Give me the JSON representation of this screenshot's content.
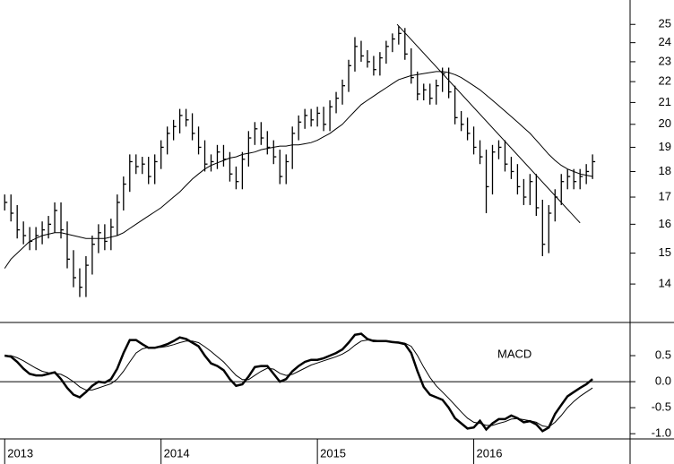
{
  "chart_data": {
    "type": "hlc",
    "log_scale": true,
    "xlim": [
      2012.97,
      2017.0
    ],
    "xticks": [
      2013,
      2014,
      2015,
      2016
    ],
    "ylim": [
      12.9,
      26.4
    ],
    "yticks": [
      14,
      15,
      16,
      17,
      18,
      19,
      20,
      21,
      22,
      23,
      24,
      25
    ],
    "color": "#000000",
    "x": [
      2013,
      2013.04,
      2013.08,
      2013.12,
      2013.16,
      2013.2,
      2013.24,
      2013.28,
      2013.32,
      2013.36,
      2013.4,
      2013.44,
      2013.48,
      2013.52,
      2013.56,
      2013.6,
      2013.64,
      2013.68,
      2013.72,
      2013.76,
      2013.8,
      2013.84,
      2013.88,
      2013.92,
      2013.96,
      2014,
      2014.04,
      2014.08,
      2014.12,
      2014.16,
      2014.2,
      2014.24,
      2014.28,
      2014.32,
      2014.36,
      2014.4,
      2014.44,
      2014.48,
      2014.52,
      2014.56,
      2014.6,
      2014.64,
      2014.68,
      2014.72,
      2014.76,
      2014.8,
      2014.84,
      2014.88,
      2014.92,
      2014.96,
      2015,
      2015.04,
      2015.08,
      2015.12,
      2015.16,
      2015.2,
      2015.24,
      2015.28,
      2015.32,
      2015.36,
      2015.4,
      2015.44,
      2015.48,
      2015.52,
      2015.56,
      2015.6,
      2015.64,
      2015.68,
      2015.72,
      2015.76,
      2015.8,
      2015.84,
      2015.88,
      2015.92,
      2015.96,
      2016,
      2016.04,
      2016.08,
      2016.12,
      2016.16,
      2016.2,
      2016.24,
      2016.28,
      2016.32,
      2016.36,
      2016.4,
      2016.44,
      2016.48,
      2016.52,
      2016.56,
      2016.6,
      2016.64,
      2016.68,
      2016.72,
      2016.76
    ],
    "high": [
      17.1,
      17.1,
      16.7,
      16.1,
      15.9,
      15.9,
      16.1,
      16.3,
      16.8,
      16.8,
      16.1,
      15.1,
      14.5,
      14.9,
      15.6,
      16.0,
      16.0,
      16.2,
      17.1,
      17.8,
      18.7,
      18.7,
      18.6,
      18.6,
      18.7,
      19.3,
      19.9,
      20.2,
      20.7,
      20.7,
      20.5,
      19.9,
      19.3,
      18.7,
      19.1,
      19.1,
      18.8,
      18.2,
      18.8,
      19.7,
      20.1,
      20.1,
      19.7,
      19.3,
      18.9,
      18.7,
      19.9,
      20.4,
      20.7,
      20.7,
      20.8,
      20.8,
      21.1,
      21.5,
      22.1,
      23.1,
      24.3,
      24.1,
      23.6,
      23.3,
      23.5,
      24.1,
      24.5,
      24.9,
      24.8,
      23.7,
      22.5,
      21.9,
      21.9,
      22.1,
      22.7,
      22.7,
      21.8,
      20.6,
      20.3,
      19.9,
      19.3,
      18.9,
      19.1,
      19.3,
      19.3,
      18.6,
      18.3,
      17.7,
      17.9,
      17.9,
      16.9,
      16.7,
      17.3,
      17.9,
      18.1,
      18.1,
      18.1,
      18.3,
      18.7
    ],
    "low": [
      16.5,
      16.1,
      15.5,
      15.3,
      15.1,
      15.1,
      15.3,
      15.5,
      15.7,
      15.5,
      14.5,
      13.9,
      13.6,
      13.6,
      14.3,
      15.0,
      15.1,
      15.1,
      15.6,
      16.5,
      17.2,
      17.9,
      17.9,
      17.5,
      17.5,
      18.1,
      18.7,
      19.3,
      19.6,
      19.9,
      19.3,
      18.7,
      18.0,
      18.0,
      18.1,
      18.2,
      17.6,
      17.3,
      17.3,
      18.2,
      19.1,
      19.1,
      18.7,
      18.3,
      17.5,
      17.5,
      18.1,
      19.3,
      19.8,
      19.9,
      19.9,
      19.7,
      19.7,
      20.5,
      20.9,
      21.5,
      22.5,
      23.0,
      22.7,
      22.3,
      22.3,
      22.9,
      23.5,
      23.9,
      23.1,
      21.9,
      21.1,
      21.1,
      20.9,
      20.9,
      21.5,
      21.2,
      20.0,
      19.7,
      19.3,
      18.7,
      18.3,
      16.4,
      17.1,
      18.5,
      18.0,
      17.7,
      17.1,
      16.7,
      16.7,
      16.3,
      14.9,
      15.0,
      16.1,
      16.7,
      17.3,
      17.3,
      17.3,
      17.5,
      17.7
    ],
    "close": [
      16.8,
      16.4,
      15.8,
      15.6,
      15.4,
      15.6,
      15.8,
      16.0,
      16.5,
      15.8,
      14.8,
      14.2,
      13.9,
      14.6,
      15.3,
      15.7,
      15.4,
      15.9,
      16.8,
      17.5,
      18.4,
      18.2,
      18.3,
      17.8,
      18.4,
      19.0,
      19.6,
      19.9,
      20.4,
      20.2,
      19.6,
      19.0,
      18.3,
      18.4,
      18.8,
      18.5,
      17.9,
      17.6,
      18.5,
      19.4,
      19.8,
      19.4,
      19.0,
      18.6,
      17.8,
      18.4,
      19.6,
      20.1,
      20.4,
      20.2,
      20.5,
      20.0,
      20.8,
      21.2,
      21.8,
      22.8,
      23.8,
      23.3,
      23.0,
      22.6,
      23.2,
      23.8,
      24.2,
      24.5,
      23.4,
      22.2,
      21.4,
      21.6,
      21.2,
      21.8,
      22.4,
      21.5,
      20.3,
      20.0,
      19.6,
      19.0,
      18.6,
      17.4,
      18.8,
      19.0,
      18.3,
      18.0,
      17.4,
      17.0,
      17.6,
      16.6,
      15.3,
      16.4,
      17.0,
      17.6,
      17.8,
      17.6,
      17.8,
      18.0,
      18.4
    ],
    "moving_average": [
      14.5,
      14.8,
      15.0,
      15.2,
      15.4,
      15.5,
      15.6,
      15.65,
      15.7,
      15.7,
      15.65,
      15.6,
      15.55,
      15.5,
      15.5,
      15.5,
      15.5,
      15.55,
      15.6,
      15.7,
      15.85,
      16.0,
      16.15,
      16.3,
      16.45,
      16.6,
      16.8,
      17.0,
      17.2,
      17.45,
      17.7,
      17.9,
      18.1,
      18.25,
      18.35,
      18.45,
      18.55,
      18.6,
      18.7,
      18.75,
      18.8,
      18.9,
      18.95,
      19.0,
      19.05,
      19.05,
      19.1,
      19.1,
      19.15,
      19.2,
      19.3,
      19.45,
      19.6,
      19.8,
      20.0,
      20.3,
      20.6,
      20.9,
      21.1,
      21.3,
      21.5,
      21.7,
      21.9,
      22.1,
      22.2,
      22.3,
      22.35,
      22.4,
      22.45,
      22.5,
      22.5,
      22.45,
      22.35,
      22.2,
      22.0,
      21.8,
      21.6,
      21.35,
      21.1,
      20.85,
      20.6,
      20.35,
      20.1,
      19.85,
      19.6,
      19.3,
      19.0,
      18.7,
      18.45,
      18.25,
      18.1,
      18.0,
      17.9,
      17.85,
      17.8
    ],
    "trendline": {
      "x": [
        2015.51,
        2016.68
      ],
      "values": [
        25.0,
        16.05
      ]
    },
    "macd": {
      "label": "MACD",
      "ylim": [
        -1.1,
        1.12
      ],
      "yticks": [
        0.5,
        {
          "value": 0,
          "label": "0.0"
        },
        -0.5,
        {
          "value": -1,
          "label": "-1.0"
        }
      ],
      "zero_line": true,
      "line": [
        0.5,
        0.48,
        0.38,
        0.25,
        0.15,
        0.12,
        0.12,
        0.15,
        0.18,
        0.05,
        -0.12,
        -0.25,
        -0.3,
        -0.2,
        -0.08,
        0.0,
        -0.02,
        0.05,
        0.25,
        0.55,
        0.8,
        0.8,
        0.72,
        0.65,
        0.65,
        0.68,
        0.72,
        0.78,
        0.85,
        0.82,
        0.75,
        0.68,
        0.5,
        0.35,
        0.3,
        0.22,
        0.05,
        -0.08,
        -0.05,
        0.1,
        0.28,
        0.3,
        0.3,
        0.15,
        0.0,
        0.05,
        0.2,
        0.3,
        0.38,
        0.42,
        0.42,
        0.45,
        0.5,
        0.55,
        0.62,
        0.75,
        0.9,
        0.92,
        0.82,
        0.78,
        0.78,
        0.78,
        0.76,
        0.75,
        0.72,
        0.55,
        0.2,
        -0.1,
        -0.25,
        -0.3,
        -0.35,
        -0.5,
        -0.7,
        -0.8,
        -0.9,
        -0.88,
        -0.75,
        -0.92,
        -0.8,
        -0.72,
        -0.72,
        -0.65,
        -0.7,
        -0.78,
        -0.76,
        -0.82,
        -0.95,
        -0.88,
        -0.62,
        -0.45,
        -0.28,
        -0.2,
        -0.12,
        -0.05,
        0.05
      ],
      "signal": [
        0.5,
        0.5,
        0.46,
        0.4,
        0.33,
        0.26,
        0.2,
        0.17,
        0.16,
        0.14,
        0.08,
        0.0,
        -0.1,
        -0.16,
        -0.16,
        -0.12,
        -0.08,
        -0.04,
        0.05,
        0.2,
        0.38,
        0.55,
        0.63,
        0.66,
        0.66,
        0.66,
        0.68,
        0.71,
        0.75,
        0.78,
        0.78,
        0.75,
        0.67,
        0.58,
        0.48,
        0.38,
        0.25,
        0.12,
        0.04,
        0.04,
        0.12,
        0.2,
        0.26,
        0.24,
        0.16,
        0.12,
        0.14,
        0.2,
        0.26,
        0.32,
        0.36,
        0.4,
        0.44,
        0.48,
        0.53,
        0.6,
        0.7,
        0.78,
        0.8,
        0.8,
        0.79,
        0.78,
        0.77,
        0.76,
        0.74,
        0.68,
        0.5,
        0.28,
        0.08,
        -0.08,
        -0.2,
        -0.32,
        -0.45,
        -0.58,
        -0.7,
        -0.78,
        -0.8,
        -0.84,
        -0.84,
        -0.8,
        -0.77,
        -0.72,
        -0.71,
        -0.73,
        -0.75,
        -0.78,
        -0.85,
        -0.87,
        -0.78,
        -0.65,
        -0.5,
        -0.38,
        -0.28,
        -0.2,
        -0.12
      ]
    }
  }
}
